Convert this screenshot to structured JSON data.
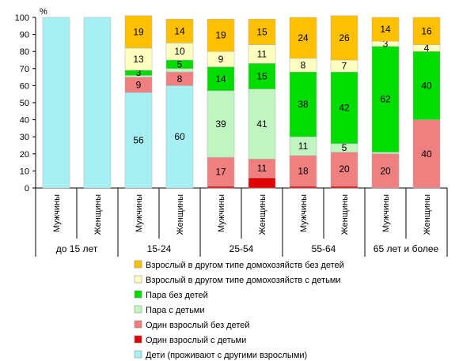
{
  "chart_data": {
    "type": "bar",
    "stacked": true,
    "y_unit": "%",
    "ylim": [
      0,
      100
    ],
    "yticks": [
      0,
      10,
      20,
      30,
      40,
      50,
      60,
      70,
      80,
      90,
      100
    ],
    "grid": false,
    "legend_position": "bottom",
    "categories": [
      "Мужчины",
      "Женщины",
      "Мужчины",
      "Женщины",
      "Мужчины",
      "Женщины",
      "Мужчины",
      "Женщины",
      "Мужчины",
      "Женщины"
    ],
    "groups": [
      {
        "label": "до 15 лет",
        "bars": [
          0,
          1
        ]
      },
      {
        "label": "15-24",
        "bars": [
          2,
          3
        ]
      },
      {
        "label": "25-54",
        "bars": [
          4,
          5
        ]
      },
      {
        "label": "55-64",
        "bars": [
          6,
          7
        ]
      },
      {
        "label": "65 лет и более",
        "bars": [
          8,
          9
        ]
      }
    ],
    "series": [
      {
        "name": "Дети (проживают с другими взрослыми)",
        "color": "#a6f0f4",
        "values": [
          100,
          100,
          56,
          60,
          0,
          0,
          0,
          0,
          0,
          0
        ],
        "labels": [
          "",
          "",
          "56",
          "60",
          "",
          "",
          "",
          "",
          "",
          ""
        ]
      },
      {
        "name": "Один взрослый с детьми",
        "color": "#e00000",
        "values": [
          0,
          0,
          0,
          0,
          1,
          6,
          1,
          1,
          0,
          0
        ],
        "labels": [
          "",
          "",
          "",
          "",
          "",
          "",
          "",
          "",
          "",
          ""
        ]
      },
      {
        "name": "Один взрослый без детей",
        "color": "#f08080",
        "values": [
          0,
          0,
          9,
          8,
          17,
          11,
          18,
          20,
          20,
          40
        ],
        "labels": [
          "",
          "",
          "9",
          "8",
          "17",
          "11",
          "18",
          "20",
          "20",
          "40"
        ]
      },
      {
        "name": "Пара с детьми",
        "color": "#c0f4c0",
        "values": [
          0,
          0,
          1,
          2,
          39,
          41,
          11,
          5,
          1,
          0
        ],
        "labels": [
          "",
          "",
          "",
          "",
          "39",
          "41",
          "11",
          "5",
          "",
          ""
        ]
      },
      {
        "name": "Пара без детей",
        "color": "#00dd00",
        "values": [
          0,
          0,
          3,
          5,
          14,
          15,
          38,
          42,
          62,
          40
        ],
        "labels": [
          "",
          "",
          "3",
          "5",
          "14",
          "15",
          "38",
          "42",
          "62",
          "40"
        ]
      },
      {
        "name": "Взрослый в другом типе домохозяйств с детьми",
        "color": "#ffffc0",
        "values": [
          0,
          0,
          13,
          10,
          9,
          11,
          8,
          7,
          3,
          4
        ],
        "labels": [
          "",
          "",
          "13",
          "10",
          "9",
          "11",
          "8",
          "7",
          "3",
          "4"
        ]
      },
      {
        "name": "Взрослый в другом типе домохозяйств без детей",
        "color": "#ffc000",
        "values": [
          0,
          0,
          19,
          14,
          19,
          15,
          24,
          26,
          14,
          16
        ],
        "labels": [
          "",
          "",
          "19",
          "14",
          "19",
          "15",
          "24",
          "26",
          "14",
          "16"
        ]
      }
    ],
    "legend_order": [
      6,
      5,
      4,
      3,
      2,
      1,
      0
    ]
  }
}
